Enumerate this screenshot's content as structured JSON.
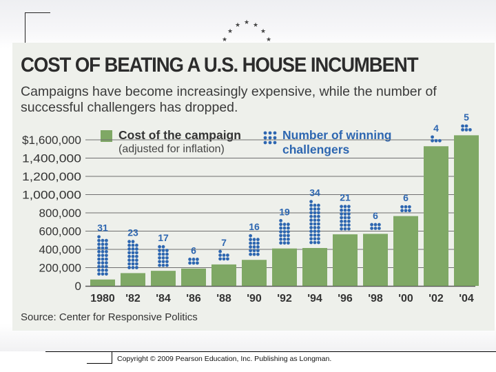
{
  "chart_data": {
    "type": "bar",
    "title": "COST OF BEATING A U.S. HOUSE INCUMBENT",
    "subtitle": "Campaigns have become increasingly expensive, while the number of successful challengers has dropped.",
    "categories": [
      "1980",
      "'82",
      "'84",
      "'86",
      "'88",
      "'90",
      "'92",
      "'94",
      "'96",
      "'98",
      "'00",
      "'02",
      "'04"
    ],
    "series": [
      {
        "name": "Cost of the campaign",
        "note": "(adjusted for inflation)",
        "values": [
          70000,
          140000,
          165000,
          190000,
          235000,
          285000,
          410000,
          415000,
          565000,
          570000,
          765000,
          1530000,
          1650000
        ]
      },
      {
        "name": "Number of winning challengers",
        "values": [
          31,
          23,
          17,
          6,
          7,
          16,
          19,
          34,
          21,
          6,
          6,
          4,
          5
        ]
      }
    ],
    "y_ticks": [
      "$1,600,000",
      "1,400,000",
      "1,200,000",
      "1,000,000",
      "800,000",
      "600,000",
      "400,000",
      "200,000",
      "0"
    ],
    "ylim": [
      0,
      1600000
    ],
    "source": "Source: Center for Responsive Politics",
    "colors": {
      "bar": "#7fa865",
      "dots": "#2d66b0",
      "grid": "#6e6e6e"
    }
  },
  "footer": {
    "copyright": "Copyright © 2009 Pearson Education, Inc. Publishing as Longman."
  }
}
